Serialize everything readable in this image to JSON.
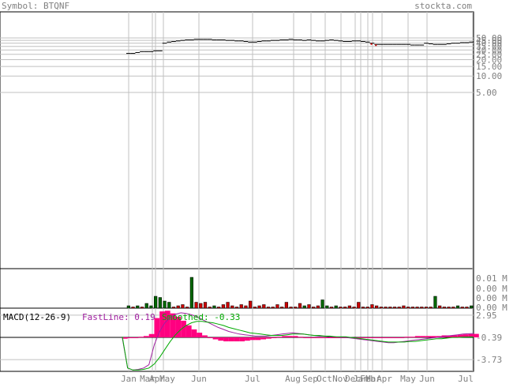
{
  "header": {
    "symbol_label": "Symbol: BTQNF",
    "site": "stockta.com"
  },
  "colors": {
    "up": "#006600",
    "down": "#cc0000",
    "grid": "#c0c0c0",
    "text": "#808080",
    "fastline": "#a020a0",
    "smoothed": "#00aa00",
    "histogram": "#ff0080"
  },
  "chart_data": [
    {
      "type": "line",
      "panel": "price",
      "scale": "log",
      "y_ticks": [
        "50.00",
        "45.00",
        "40.00",
        "35.00",
        "30.00",
        "25.00",
        "20.00",
        "15.00",
        "10.00",
        "5.00"
      ],
      "y_tick_values": [
        50,
        45,
        40,
        35,
        30,
        25,
        20,
        15,
        10,
        5
      ],
      "ylim": [
        0,
        60
      ],
      "x_labels": [
        "Jan",
        "Mar",
        "Apr",
        "May",
        "Jun",
        "Jul",
        "Aug",
        "Sep",
        "Oct",
        "Nov",
        "Dec",
        "Jan",
        "Feb",
        "Mar",
        "Apr",
        "May",
        "Jun",
        "Jul"
      ],
      "close": [
        26,
        26,
        27,
        28,
        28,
        28,
        29,
        29,
        40,
        42,
        43,
        44,
        45,
        46,
        46,
        47,
        47,
        47,
        47,
        46,
        46,
        46,
        45,
        45,
        44,
        44,
        43,
        42,
        42,
        43,
        44,
        44,
        45,
        45,
        46,
        46,
        47,
        46,
        46,
        45,
        46,
        45,
        44,
        44,
        45,
        46,
        45,
        44,
        43,
        43,
        44,
        44,
        43,
        42,
        40,
        38,
        38,
        38,
        38,
        38,
        38,
        38,
        38,
        37,
        37,
        37,
        40,
        39,
        38,
        38,
        38,
        39,
        40,
        40,
        41,
        41,
        42
      ]
    },
    {
      "type": "bar",
      "panel": "volume",
      "y_ticks": [
        "0.01 M",
        "0.00 M",
        "0.00 M",
        "0.00 M"
      ],
      "values": [
        0.002,
        0.001,
        0.002,
        0.001,
        0.004,
        0.002,
        0.01,
        0.009,
        0.006,
        0.005,
        0.001,
        0.002,
        0.003,
        0.001,
        0.026,
        0.005,
        0.004,
        0.005,
        0.001,
        0.002,
        0.001,
        0.003,
        0.005,
        0.002,
        0.001,
        0.003,
        0.002,
        0.006,
        0.001,
        0.002,
        0.003,
        0.001,
        0.001,
        0.003,
        0.001,
        0.005,
        0.001,
        0.001,
        0.004,
        0.002,
        0.003,
        0.001,
        0.002,
        0.007,
        0.002,
        0.001,
        0.002,
        0.001,
        0.001,
        0.002,
        0.001,
        0.005,
        0.001,
        0.001,
        0.003,
        0.002,
        0.001,
        0.001,
        0.001,
        0.001,
        0.001,
        0.002,
        0.001,
        0.001,
        0.001,
        0.001,
        0.001,
        0.001,
        0.01,
        0.002,
        0.001,
        0.001,
        0.001,
        0.002,
        0.001,
        0.001,
        0.002
      ],
      "up": [
        1,
        0,
        1,
        0,
        1,
        1,
        1,
        1,
        1,
        1,
        0,
        0,
        0,
        0,
        1,
        0,
        0,
        0,
        0,
        1,
        0,
        0,
        0,
        0,
        0,
        0,
        0,
        0,
        0,
        0,
        0,
        0,
        0,
        0,
        0,
        0,
        0,
        0,
        0,
        1,
        0,
        0,
        0,
        1,
        1,
        0,
        1,
        0,
        0,
        0,
        0,
        0,
        0,
        0,
        0,
        0,
        0,
        0,
        0,
        0,
        0,
        0,
        0,
        0,
        0,
        0,
        0,
        0,
        1,
        0,
        0,
        0,
        0,
        1,
        0,
        0,
        1
      ]
    },
    {
      "type": "line",
      "panel": "macd",
      "title": "MACD(12-26-9)",
      "fastline_label": "FastLine: 0.19",
      "smoothed_label": "Smoothed: -0.33",
      "y_ticks": [
        "2.95",
        "-0.39",
        "-3.73"
      ],
      "y_tick_values": [
        2.95,
        -0.39,
        -3.73
      ],
      "ylim": [
        -5.5,
        4.0
      ],
      "fastline": [
        -0.5,
        -5.0,
        -5.3,
        -5.2,
        -5.0,
        -4.5,
        -1.5,
        0.5,
        1.8,
        2.6,
        3.1,
        3.3,
        3.2,
        3.0,
        2.7,
        2.3,
        1.9,
        1.5,
        1.1,
        0.8,
        0.5,
        0.3,
        0.1,
        0.0,
        -0.1,
        -0.2,
        -0.2,
        -0.2,
        -0.1,
        0.0,
        0.1,
        0.2,
        0.3,
        0.2,
        0.1,
        0.0,
        -0.1,
        -0.2,
        -0.2,
        -0.3,
        -0.3,
        -0.4,
        -0.4,
        -0.5,
        -0.6,
        -0.7,
        -0.8,
        -0.9,
        -1.0,
        -1.1,
        -1.2,
        -1.2,
        -1.1,
        -1.0,
        -0.9,
        -0.8,
        -0.7,
        -0.6,
        -0.5,
        -0.4,
        -0.3,
        -0.2,
        -0.1,
        0.0,
        0.1,
        0.15,
        0.19
      ],
      "smoothed": [
        -0.3,
        -5.0,
        -5.3,
        -5.3,
        -5.2,
        -5.0,
        -4.4,
        -3.4,
        -2.2,
        -1.0,
        0.0,
        0.8,
        1.4,
        1.8,
        2.0,
        2.0,
        1.9,
        1.8,
        1.6,
        1.4,
        1.1,
        0.9,
        0.7,
        0.5,
        0.3,
        0.2,
        0.1,
        0.0,
        -0.1,
        -0.1,
        -0.1,
        0.0,
        0.1,
        0.1,
        0.1,
        0.0,
        -0.1,
        -0.1,
        -0.2,
        -0.2,
        -0.3,
        -0.3,
        -0.3,
        -0.4,
        -0.5,
        -0.6,
        -0.7,
        -0.8,
        -0.9,
        -1.0,
        -1.1,
        -1.1,
        -1.1,
        -1.1,
        -1.0,
        -1.0,
        -0.9,
        -0.8,
        -0.7,
        -0.6,
        -0.6,
        -0.5,
        -0.4,
        -0.4,
        -0.35,
        -0.34,
        -0.33
      ]
    }
  ]
}
